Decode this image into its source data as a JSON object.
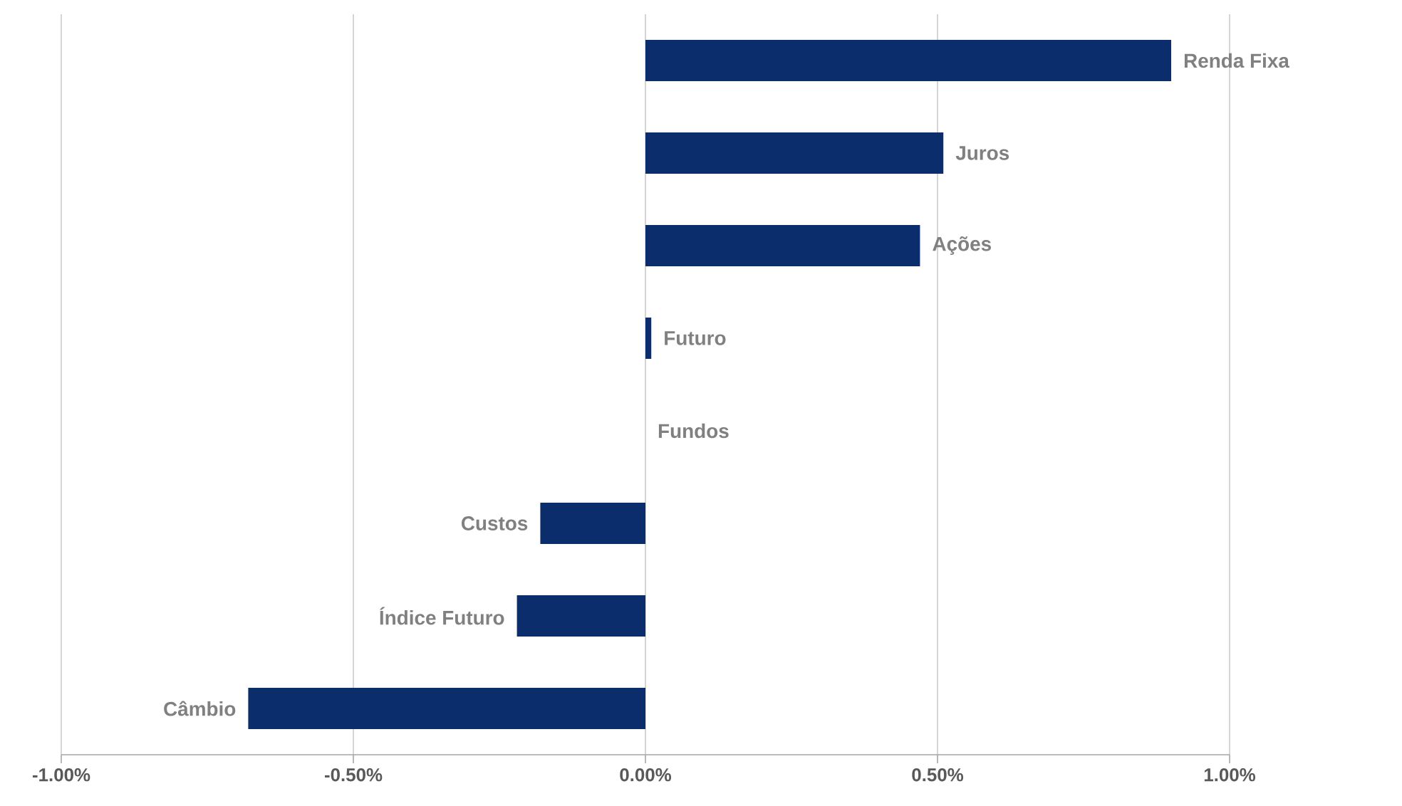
{
  "chart_data": {
    "type": "bar",
    "orientation": "horizontal",
    "categories": [
      "Renda Fixa",
      "Juros",
      "Ações",
      "Futuro",
      "Fundos",
      "Custos",
      "Índice Futuro",
      "Câmbio"
    ],
    "values": [
      0.9,
      0.51,
      0.47,
      0.01,
      0,
      -0.18,
      -0.22,
      -0.68
    ],
    "color": "#0c2d6b",
    "xlim": [
      -1,
      1
    ],
    "xticks": [
      {
        "value": -1,
        "label": "-1.00%"
      },
      {
        "value": -0.5,
        "label": "-0.50%"
      },
      {
        "value": 0,
        "label": "0.00%"
      },
      {
        "value": 0.5,
        "label": "0.50%"
      },
      {
        "value": 1,
        "label": "1.00%"
      }
    ],
    "grid": "x"
  }
}
